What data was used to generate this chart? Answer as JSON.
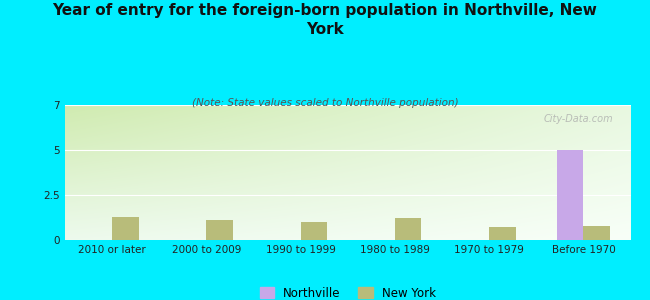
{
  "title": "Year of entry for the foreign-born population in Northville, New\nYork",
  "subtitle": "(Note: State values scaled to Northville population)",
  "categories": [
    "2010 or later",
    "2000 to 2009",
    "1990 to 1999",
    "1980 to 1989",
    "1970 to 1979",
    "Before 1970"
  ],
  "northville_values": [
    0,
    0,
    0,
    0,
    0,
    5.0
  ],
  "newyork_values": [
    1.3,
    1.1,
    1.0,
    1.2,
    0.7,
    0.8
  ],
  "northville_color": "#c8a8e8",
  "newyork_color": "#b8bc7a",
  "background_color": "#00eeff",
  "grad_top_left": "#e8f5e0",
  "grad_bottom_right": "#f8fff4",
  "ylim": [
    0,
    7.5
  ],
  "yticks": [
    0,
    2.5,
    5,
    7.5
  ],
  "bar_width": 0.28,
  "title_fontsize": 11,
  "subtitle_fontsize": 7.5,
  "tick_fontsize": 7.5,
  "watermark": "City-Data.com"
}
